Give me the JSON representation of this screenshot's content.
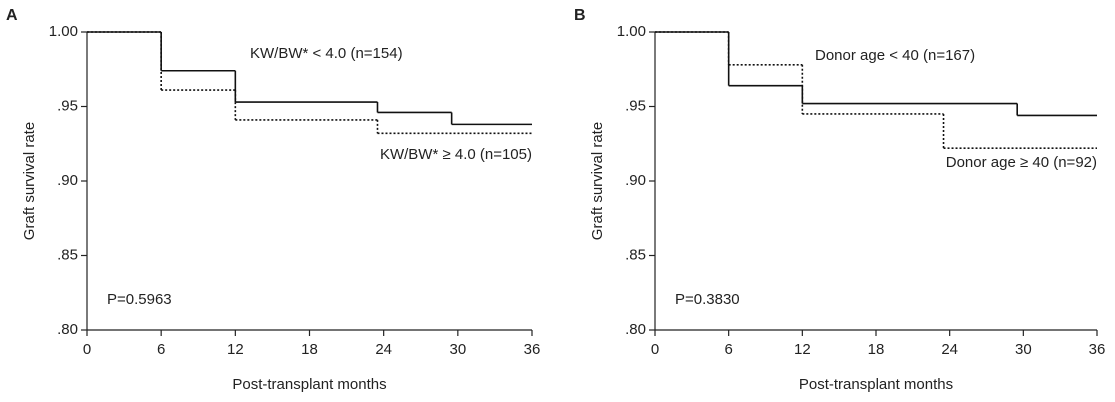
{
  "chart_data": [
    {
      "type": "step",
      "panel": "A",
      "ylabel": "Graft survival rate",
      "xlabel": "Post-transplant months",
      "annotation": "P=0.5963",
      "xlim": [
        0,
        36
      ],
      "xticks": [
        0,
        6,
        12,
        18,
        24,
        30,
        36
      ],
      "ylim": [
        0.8,
        1.0
      ],
      "yticks": [
        {
          "value": 0.8,
          "label": ".80"
        },
        {
          "value": 0.85,
          "label": ".85"
        },
        {
          "value": 0.9,
          "label": ".90"
        },
        {
          "value": 0.95,
          "label": ".95"
        },
        {
          "value": 1.0,
          "label": "1.00"
        }
      ],
      "series": [
        {
          "name": "KW/BW* < 4.0 (n=154)",
          "color": "#111111",
          "dash": "solid",
          "x": [
            0,
            6,
            12,
            23.5,
            29.5,
            36
          ],
          "values": [
            1.0,
            0.974,
            0.953,
            0.946,
            0.938,
            0.938
          ]
        },
        {
          "name": "KW/BW* ≥ 4.0 (n=105)",
          "color": "#111111",
          "dash": "dotted",
          "x": [
            0,
            6,
            12,
            23.5,
            36
          ],
          "values": [
            1.0,
            0.961,
            0.941,
            0.932,
            0.932
          ]
        }
      ]
    },
    {
      "type": "step",
      "panel": "B",
      "ylabel": "Graft survival rate",
      "xlabel": "Post-transplant months",
      "annotation": "P=0.3830",
      "xlim": [
        0,
        36
      ],
      "xticks": [
        0,
        6,
        12,
        18,
        24,
        30,
        36
      ],
      "ylim": [
        0.8,
        1.0
      ],
      "yticks": [
        {
          "value": 0.8,
          "label": ".80"
        },
        {
          "value": 0.85,
          "label": ".85"
        },
        {
          "value": 0.9,
          "label": ".90"
        },
        {
          "value": 0.95,
          "label": ".95"
        },
        {
          "value": 1.0,
          "label": "1.00"
        }
      ],
      "series": [
        {
          "name": "Donor age < 40 (n=167)",
          "color": "#111111",
          "dash": "solid",
          "x": [
            0,
            6,
            12,
            29.5,
            36
          ],
          "values": [
            1.0,
            0.964,
            0.952,
            0.944,
            0.944
          ]
        },
        {
          "name": "Donor age ≥ 40 (n=92)",
          "color": "#111111",
          "dash": "dotted",
          "x": [
            0,
            6,
            12,
            23.5,
            36
          ],
          "values": [
            1.0,
            0.978,
            0.945,
            0.922,
            0.922
          ]
        }
      ]
    }
  ]
}
